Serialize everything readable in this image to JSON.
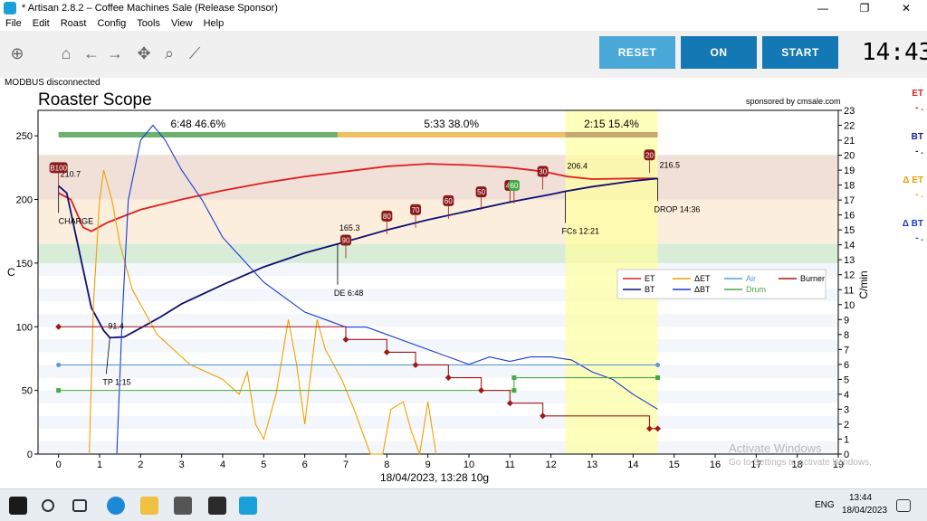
{
  "window": {
    "title": "* Artisan 2.8.2 – Coffee Machines Sale (Release Sponsor)",
    "minimize": "—",
    "maximize": "❐",
    "close": "✕"
  },
  "menu": [
    "File",
    "Edit",
    "Roast",
    "Config",
    "Tools",
    "View",
    "Help"
  ],
  "toolbar": {
    "reset_label": "RESET",
    "on_label": "ON",
    "start_label": "START",
    "clock": "14:43",
    "reset_color": "#4aa8d8",
    "button_color": "#1478b4"
  },
  "status": {
    "modbus": "MODBUS disconnected"
  },
  "side_legend": [
    {
      "label": "ET",
      "color": "#e02020"
    },
    {
      "label": "BT",
      "color": "#1818a0"
    },
    {
      "label": "Δ ET",
      "color": "#f0a000"
    },
    {
      "label": "Δ BT",
      "color": "#1a3ad8"
    }
  ],
  "chart_data": {
    "type": "line",
    "title": "Roaster Scope",
    "sponsor": "sponsored by cmsale.com",
    "xlabel": "18/04/2023, 13:28   10g",
    "ylabel": "C",
    "y2label": "C/min",
    "xlim": [
      -0.5,
      19
    ],
    "ylim": [
      0,
      270
    ],
    "y2lim": [
      0,
      23
    ],
    "xticks": [
      0,
      1,
      2,
      3,
      4,
      5,
      6,
      7,
      8,
      9,
      10,
      11,
      12,
      13,
      14,
      15,
      16,
      17,
      18,
      19
    ],
    "yticks": [
      0,
      50,
      100,
      150,
      200,
      250
    ],
    "y2ticks": [
      0,
      1,
      2,
      3,
      4,
      5,
      6,
      7,
      8,
      9,
      10,
      11,
      12,
      13,
      14,
      15,
      16,
      17,
      18,
      19,
      20,
      21,
      22,
      23
    ],
    "phases": [
      {
        "label": "6:48  46.6%",
        "start": 0,
        "end": 6.8,
        "color": "#6cb26c"
      },
      {
        "label": "5:33  38.0%",
        "start": 6.8,
        "end": 12.35,
        "color": "#f0c060"
      },
      {
        "label": "2:15  15.4%",
        "start": 12.35,
        "end": 14.6,
        "color": "#c8a870"
      }
    ],
    "series": [
      {
        "name": "ET",
        "color": "#e02020",
        "axis": "left",
        "points": [
          [
            0,
            205
          ],
          [
            0.3,
            200
          ],
          [
            0.6,
            178
          ],
          [
            0.8,
            175
          ],
          [
            1.2,
            182
          ],
          [
            2,
            192
          ],
          [
            3,
            200
          ],
          [
            4,
            207
          ],
          [
            5,
            213
          ],
          [
            6,
            218
          ],
          [
            7,
            222
          ],
          [
            8,
            226
          ],
          [
            9,
            228
          ],
          [
            10,
            227
          ],
          [
            11,
            225
          ],
          [
            11.8,
            222
          ],
          [
            12.4,
            218
          ],
          [
            13,
            216
          ],
          [
            14,
            216.5
          ],
          [
            14.6,
            216.5
          ]
        ]
      },
      {
        "name": "BT",
        "color": "#101070",
        "axis": "left",
        "points": [
          [
            0,
            210.7
          ],
          [
            0.2,
            205
          ],
          [
            0.5,
            160
          ],
          [
            0.8,
            115
          ],
          [
            1.1,
            97
          ],
          [
            1.25,
            91.4
          ],
          [
            1.6,
            92
          ],
          [
            2,
            99
          ],
          [
            2.5,
            108
          ],
          [
            3,
            118
          ],
          [
            4,
            133
          ],
          [
            5,
            147
          ],
          [
            6,
            158
          ],
          [
            6.8,
            165
          ],
          [
            8,
            176
          ],
          [
            9,
            184
          ],
          [
            10,
            191
          ],
          [
            11,
            198
          ],
          [
            12,
            204
          ],
          [
            12.35,
            206.4
          ],
          [
            13,
            210
          ],
          [
            14,
            214.5
          ],
          [
            14.6,
            216.5
          ]
        ]
      },
      {
        "name": "ΔET",
        "color": "#f0a000",
        "axis": "right",
        "points": [
          [
            0.75,
            0
          ],
          [
            0.85,
            10
          ],
          [
            1,
            17
          ],
          [
            1.1,
            19
          ],
          [
            1.3,
            17
          ],
          [
            1.5,
            14
          ],
          [
            1.8,
            11
          ],
          [
            2,
            10
          ],
          [
            2.4,
            8
          ],
          [
            2.8,
            7
          ],
          [
            3.2,
            6
          ],
          [
            3.6,
            5.5
          ],
          [
            4,
            5
          ],
          [
            4.4,
            4
          ],
          [
            4.6,
            5.5
          ],
          [
            4.8,
            2
          ],
          [
            5,
            1
          ],
          [
            5.3,
            4
          ],
          [
            5.6,
            9
          ],
          [
            5.8,
            6
          ],
          [
            6,
            2
          ],
          [
            6.3,
            9
          ],
          [
            6.5,
            7
          ],
          [
            6.9,
            5
          ],
          [
            7.2,
            3
          ],
          [
            7.6,
            0
          ],
          [
            7.9,
            0
          ],
          [
            8.1,
            3
          ],
          [
            8.4,
            3.5
          ],
          [
            8.6,
            1.5
          ],
          [
            8.8,
            0
          ],
          [
            9,
            3.5
          ],
          [
            9.2,
            0
          ]
        ]
      },
      {
        "name": "ΔBT",
        "color": "#1a3ad8",
        "axis": "right",
        "points": [
          [
            1.42,
            0
          ],
          [
            1.55,
            9
          ],
          [
            1.7,
            17
          ],
          [
            2,
            21
          ],
          [
            2.3,
            22
          ],
          [
            2.6,
            21
          ],
          [
            3,
            19
          ],
          [
            3.5,
            17
          ],
          [
            4,
            14.5
          ],
          [
            4.5,
            13
          ],
          [
            5,
            11.5
          ],
          [
            5.5,
            10.5
          ],
          [
            6,
            9.5
          ],
          [
            6.5,
            9
          ],
          [
            7,
            8.5
          ],
          [
            7.5,
            8.5
          ],
          [
            8,
            8
          ],
          [
            8.5,
            7.5
          ],
          [
            9,
            7
          ],
          [
            9.5,
            6.5
          ],
          [
            10,
            6
          ],
          [
            10.5,
            6.5
          ],
          [
            11,
            6.2
          ],
          [
            11.5,
            6.5
          ],
          [
            12,
            6.5
          ],
          [
            12.5,
            6.3
          ],
          [
            13,
            5.5
          ],
          [
            13.5,
            5
          ],
          [
            14,
            4
          ],
          [
            14.3,
            3.5
          ],
          [
            14.6,
            3
          ]
        ]
      },
      {
        "name": "Air",
        "color": "#5b9bd5",
        "axis": "left",
        "marker": "circle",
        "points": [
          [
            0,
            70
          ],
          [
            14.6,
            70
          ]
        ]
      },
      {
        "name": "Drum",
        "color": "#44aa44",
        "axis": "left",
        "marker": "square",
        "points": [
          [
            0,
            50
          ],
          [
            11.1,
            50
          ],
          [
            11.1,
            60
          ],
          [
            14.6,
            60
          ]
        ]
      },
      {
        "name": "Burner",
        "color": "#a01818",
        "axis": "left",
        "marker": "diamond",
        "step": true,
        "points": [
          [
            0,
            100
          ],
          [
            7,
            90
          ],
          [
            8,
            80
          ],
          [
            8.7,
            70
          ],
          [
            9.5,
            60
          ],
          [
            10.3,
            50
          ],
          [
            11,
            40
          ],
          [
            11.8,
            30
          ],
          [
            14.4,
            20
          ],
          [
            14.6,
            20
          ]
        ]
      }
    ],
    "events": [
      {
        "label": "CHARGE",
        "x": 0,
        "y": 210.7,
        "value": "210.7"
      },
      {
        "label": "TP 1:15",
        "x": 1.25,
        "y": 91.4,
        "value": "91.4"
      },
      {
        "label": "DE 6:48",
        "x": 6.8,
        "y": 165,
        "value": "165.3"
      },
      {
        "label": "FCs 12:21",
        "x": 12.35,
        "y": 206.4,
        "value": "206.4"
      },
      {
        "label": "DROP 14:36",
        "x": 14.6,
        "y": 216.5,
        "value": "216.5"
      }
    ],
    "burner_tags": [
      {
        "text": "B100",
        "x": 0,
        "y": 225
      },
      {
        "text": "90",
        "x": 7.0,
        "y": 168
      },
      {
        "text": "80",
        "x": 8.0,
        "y": 187
      },
      {
        "text": "70",
        "x": 8.7,
        "y": 192
      },
      {
        "text": "60",
        "x": 9.5,
        "y": 199
      },
      {
        "text": "50",
        "x": 10.3,
        "y": 206
      },
      {
        "text": "40",
        "x": 11.0,
        "y": 211
      },
      {
        "text": "60",
        "x": 11.1,
        "y": 211,
        "color": "#44aa44"
      },
      {
        "text": "30",
        "x": 11.8,
        "y": 222
      },
      {
        "text": "20",
        "x": 14.4,
        "y": 235
      }
    ],
    "bands": [
      {
        "from": 200,
        "to": 235,
        "color": "#f0e0d8"
      },
      {
        "from": 165,
        "to": 200,
        "color": "#fbeedd"
      },
      {
        "from": 148,
        "to": 165,
        "color": "#d8ecd8"
      }
    ],
    "legend": [
      {
        "label": "ET",
        "color": "#e02020"
      },
      {
        "label": "BT",
        "color": "#101070"
      },
      {
        "label": "ΔET",
        "color": "#f0a000"
      },
      {
        "label": "ΔBT",
        "color": "#1a3ad8"
      },
      {
        "label": "Air",
        "color": "#5b9bd5"
      },
      {
        "label": "Drum",
        "color": "#44aa44"
      },
      {
        "label": "Burner",
        "color": "#a01818"
      }
    ],
    "legend_position": "center-right",
    "dev_window": {
      "start": 12.35,
      "end": 14.6,
      "color": "#ffffa0"
    }
  },
  "watermark": {
    "line1": "Activate Windows",
    "line2": "Go to Settings to activate Windows."
  },
  "taskbar": {
    "time": "13:44",
    "date": "18/04/2023",
    "lang": "ENG"
  }
}
